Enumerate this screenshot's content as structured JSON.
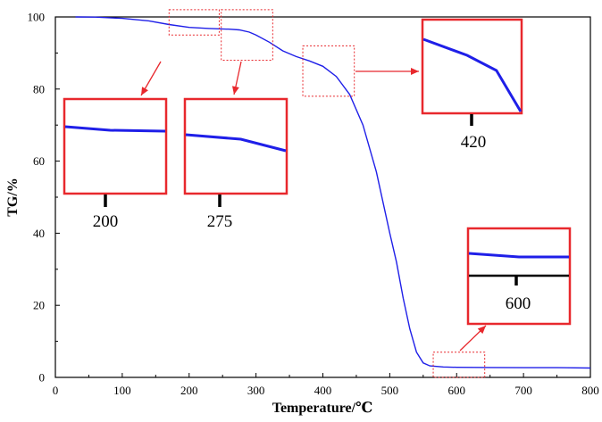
{
  "chart_data": {
    "type": "line",
    "title": "",
    "xlabel": "Temperature/℃",
    "ylabel": "TG/%",
    "xlim": [
      0,
      800
    ],
    "ylim": [
      0,
      100
    ],
    "xticks": [
      "0",
      "100",
      "200",
      "300",
      "400",
      "500",
      "600",
      "700",
      "800"
    ],
    "yticks": [
      "0",
      "20",
      "40",
      "60",
      "80",
      "100"
    ],
    "legend": "none",
    "grid": false,
    "series": [
      {
        "color": "#1f1fe8",
        "points": [
          [
            30,
            100.0
          ],
          [
            60,
            99.95
          ],
          [
            100,
            99.6
          ],
          [
            140,
            98.9
          ],
          [
            170,
            97.9
          ],
          [
            200,
            97.1
          ],
          [
            230,
            96.8
          ],
          [
            260,
            96.6
          ],
          [
            275,
            96.4
          ],
          [
            290,
            95.8
          ],
          [
            300,
            95.0
          ],
          [
            320,
            93.0
          ],
          [
            340,
            90.6
          ],
          [
            360,
            89.0
          ],
          [
            380,
            87.8
          ],
          [
            400,
            86.3
          ],
          [
            420,
            83.5
          ],
          [
            440,
            78.5
          ],
          [
            460,
            70.0
          ],
          [
            480,
            57.0
          ],
          [
            500,
            40.0
          ],
          [
            510,
            32.0
          ],
          [
            520,
            22.0
          ],
          [
            530,
            13.5
          ],
          [
            540,
            7.0
          ],
          [
            550,
            4.0
          ],
          [
            560,
            3.2
          ],
          [
            580,
            2.9
          ],
          [
            600,
            2.8
          ],
          [
            650,
            2.75
          ],
          [
            700,
            2.7
          ],
          [
            750,
            2.7
          ],
          [
            800,
            2.6
          ]
        ]
      }
    ],
    "annotations": [
      {
        "label": "200",
        "zoom_x": [
          170,
          245
        ],
        "zoom_y": [
          95,
          102
        ]
      },
      {
        "label": "275",
        "zoom_x": [
          248,
          325
        ],
        "zoom_y": [
          88,
          102
        ]
      },
      {
        "label": "420",
        "zoom_x": [
          370,
          447
        ],
        "zoom_y": [
          78,
          92
        ]
      },
      {
        "label": "600",
        "zoom_x": [
          565,
          642
        ],
        "zoom_y": [
          0,
          7
        ]
      }
    ]
  },
  "colors": {
    "curve": "#1f1fe8",
    "callout": "#e8282d",
    "axis": "#000000"
  }
}
